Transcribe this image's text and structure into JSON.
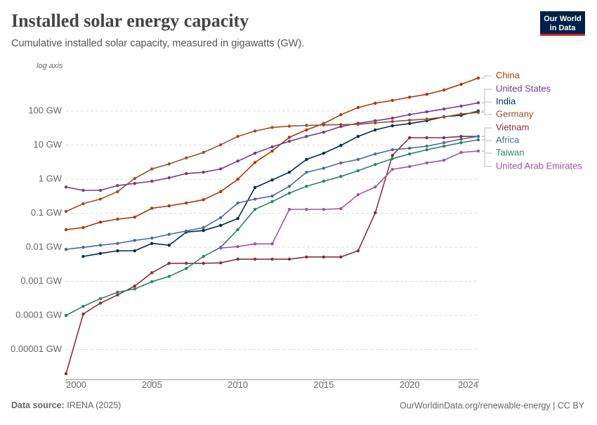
{
  "chart_data": {
    "type": "line",
    "title": "Installed solar energy capacity",
    "subtitle": "Cumulative installed solar capacity, measured in gigawatts (GW).",
    "axis_note": "log axis",
    "log_scale": true,
    "grid": true,
    "x": [
      2000,
      2001,
      2002,
      2003,
      2004,
      2005,
      2006,
      2007,
      2008,
      2009,
      2010,
      2011,
      2012,
      2013,
      2014,
      2015,
      2016,
      2017,
      2018,
      2019,
      2020,
      2021,
      2022,
      2023,
      2024
    ],
    "xlim": [
      2000,
      2024
    ],
    "xticks": [
      2000,
      2005,
      2010,
      2015,
      2020,
      2024
    ],
    "ylim": [
      1.3e-06,
      2000
    ],
    "yticks": [
      {
        "value": 1e-05,
        "label": "0.00001 GW"
      },
      {
        "value": 0.0001,
        "label": "0.0001 GW"
      },
      {
        "value": 0.001,
        "label": "0.001 GW"
      },
      {
        "value": 0.01,
        "label": "0.01 GW"
      },
      {
        "value": 0.1,
        "label": "0.1 GW"
      },
      {
        "value": 1,
        "label": "1 GW"
      },
      {
        "value": 10,
        "label": "10 GW"
      },
      {
        "value": 100,
        "label": "100 GW"
      }
    ],
    "series": [
      {
        "name": "China",
        "color": "#b13507",
        "values": [
          0.033,
          0.038,
          0.055,
          0.067,
          0.077,
          0.14,
          0.165,
          0.2,
          0.25,
          0.43,
          1.0,
          3.1,
          6.7,
          17,
          28,
          43,
          78,
          127,
          170,
          205,
          255,
          310,
          415,
          610,
          930
        ]
      },
      {
        "name": "United States",
        "color": "#6d3e91",
        "values": [
          0.59,
          0.47,
          0.47,
          0.65,
          0.75,
          0.87,
          1.1,
          1.46,
          1.6,
          2.0,
          3.4,
          5.8,
          8.9,
          13,
          18,
          24,
          35,
          44,
          52,
          62,
          79,
          95,
          115,
          140,
          175
        ]
      },
      {
        "name": "India",
        "color": "#00295b",
        "values": [
          null,
          0.0054,
          0.0066,
          0.0079,
          0.0079,
          0.013,
          0.0115,
          0.028,
          0.031,
          0.044,
          0.07,
          0.57,
          0.95,
          1.6,
          3.8,
          5.8,
          9.8,
          18,
          28,
          37,
          43,
          52,
          68,
          75,
          100
        ]
      },
      {
        "name": "Germany",
        "color": "#9a5129",
        "values": [
          0.113,
          0.19,
          0.26,
          0.43,
          1.05,
          2.0,
          2.8,
          4.2,
          6.1,
          10.2,
          18,
          26,
          33,
          36,
          38,
          39,
          40,
          41,
          45,
          49,
          54,
          58,
          67,
          82,
          91
        ]
      },
      {
        "name": "Vietnam",
        "color": "#883039",
        "values": [
          1.95e-06,
          0.00011,
          0.00023,
          0.0004,
          0.00073,
          0.0018,
          0.0034,
          0.0034,
          0.0034,
          0.0035,
          0.0045,
          0.0045,
          0.0045,
          0.0045,
          0.0052,
          0.0052,
          0.0052,
          0.0079,
          0.103,
          5.0,
          16.5,
          16.5,
          16.5,
          18,
          18
        ]
      },
      {
        "name": "Africa",
        "color": "#4c6a9c",
        "values": [
          0.0087,
          0.01,
          0.0115,
          0.013,
          0.016,
          0.0186,
          0.024,
          0.03,
          0.038,
          0.074,
          0.2,
          0.26,
          0.32,
          0.62,
          1.6,
          2.1,
          3.0,
          3.8,
          5.5,
          7.3,
          8.1,
          9.3,
          11.8,
          15,
          18
        ]
      },
      {
        "name": "Taiwan",
        "color": "#2c8465",
        "values": [
          0.0001,
          0.000185,
          0.00031,
          0.00048,
          0.0006,
          0.00098,
          0.0014,
          0.0024,
          0.0054,
          0.01,
          0.033,
          0.13,
          0.22,
          0.39,
          0.62,
          0.87,
          1.2,
          1.77,
          2.7,
          4.0,
          5.5,
          7.3,
          9.3,
          11.8,
          14.3
        ]
      },
      {
        "name": "United Arab Emirates",
        "color": "#a2559c",
        "values": [
          null,
          null,
          null,
          null,
          null,
          null,
          null,
          null,
          null,
          0.0095,
          0.0105,
          0.0126,
          0.0126,
          0.13,
          0.13,
          0.13,
          0.136,
          0.35,
          0.59,
          1.94,
          2.35,
          3.0,
          3.6,
          6.1,
          6.7
        ]
      }
    ],
    "source_label": "Data source:",
    "source": "IRENA (2025)",
    "footer_right": "OurWorldinData.org/renewable-energy | CC BY"
  },
  "logo": {
    "line1": "Our World",
    "line2": "in Data"
  }
}
